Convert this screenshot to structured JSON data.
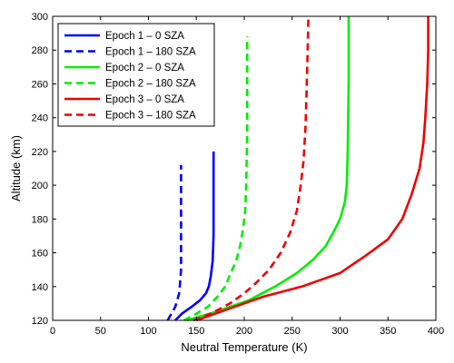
{
  "chart_data": {
    "type": "line",
    "title": "",
    "xlabel": "Neutral Temperature (K)",
    "ylabel": "Altitude (km)",
    "xlim": [
      0,
      400
    ],
    "ylim": [
      120,
      300
    ],
    "xticks": [
      0,
      50,
      100,
      150,
      200,
      250,
      300,
      350,
      400
    ],
    "yticks": [
      120,
      140,
      160,
      180,
      200,
      220,
      240,
      260,
      280,
      300
    ],
    "grid": false,
    "legend_position": "top-left",
    "series": [
      {
        "name": "Epoch 1 – 0 SZA",
        "color": "#0000ff",
        "dash": "solid",
        "points": [
          [
            128,
            120
          ],
          [
            135,
            124
          ],
          [
            145,
            128
          ],
          [
            154,
            132
          ],
          [
            160,
            136
          ],
          [
            163,
            140
          ],
          [
            165,
            146
          ],
          [
            167,
            155
          ],
          [
            168,
            170
          ],
          [
            168,
            190
          ],
          [
            168,
            220
          ]
        ]
      },
      {
        "name": "Epoch 1 – 180 SZA",
        "color": "#0000ff",
        "dash": "dashed",
        "points": [
          [
            120,
            120
          ],
          [
            124,
            124
          ],
          [
            128,
            128
          ],
          [
            130,
            132
          ],
          [
            132,
            136
          ],
          [
            133,
            142
          ],
          [
            134,
            150
          ],
          [
            134,
            165
          ],
          [
            134,
            185
          ],
          [
            134,
            212
          ]
        ]
      },
      {
        "name": "Epoch 2 – 0 SZA",
        "color": "#00ee00",
        "dash": "solid",
        "points": [
          [
            140,
            120
          ],
          [
            170,
            125
          ],
          [
            205,
            132
          ],
          [
            232,
            140
          ],
          [
            255,
            148
          ],
          [
            272,
            156
          ],
          [
            285,
            164
          ],
          [
            293,
            172
          ],
          [
            300,
            180
          ],
          [
            305,
            190
          ],
          [
            307,
            200
          ],
          [
            308,
            220
          ],
          [
            309,
            260
          ],
          [
            309,
            300
          ]
        ]
      },
      {
        "name": "Epoch 2 – 180 SZA",
        "color": "#00ee00",
        "dash": "dashed",
        "points": [
          [
            137,
            120
          ],
          [
            150,
            124
          ],
          [
            162,
            128
          ],
          [
            172,
            134
          ],
          [
            180,
            140
          ],
          [
            186,
            148
          ],
          [
            192,
            156
          ],
          [
            196,
            165
          ],
          [
            199,
            175
          ],
          [
            201,
            185
          ],
          [
            202,
            200
          ],
          [
            203,
            230
          ],
          [
            203,
            260
          ],
          [
            203,
            288
          ]
        ]
      },
      {
        "name": "Epoch 3 – 0 SZA",
        "color": "#ee0000",
        "dash": "solid",
        "points": [
          [
            150,
            120
          ],
          [
            180,
            126
          ],
          [
            220,
            134
          ],
          [
            260,
            140
          ],
          [
            300,
            148
          ],
          [
            326,
            158
          ],
          [
            350,
            168
          ],
          [
            365,
            180
          ],
          [
            375,
            195
          ],
          [
            383,
            210
          ],
          [
            387,
            225
          ],
          [
            389,
            240
          ],
          [
            391,
            260
          ],
          [
            392,
            280
          ],
          [
            392,
            300
          ]
        ]
      },
      {
        "name": "Epoch 3 – 180 SZA",
        "color": "#ee0000",
        "dash": "dashed",
        "points": [
          [
            147,
            120
          ],
          [
            165,
            124
          ],
          [
            185,
            130
          ],
          [
            200,
            136
          ],
          [
            212,
            142
          ],
          [
            226,
            150
          ],
          [
            238,
            160
          ],
          [
            248,
            172
          ],
          [
            255,
            185
          ],
          [
            259,
            200
          ],
          [
            262,
            215
          ],
          [
            264,
            235
          ],
          [
            265,
            255
          ],
          [
            266,
            275
          ],
          [
            267,
            300
          ]
        ]
      }
    ]
  }
}
